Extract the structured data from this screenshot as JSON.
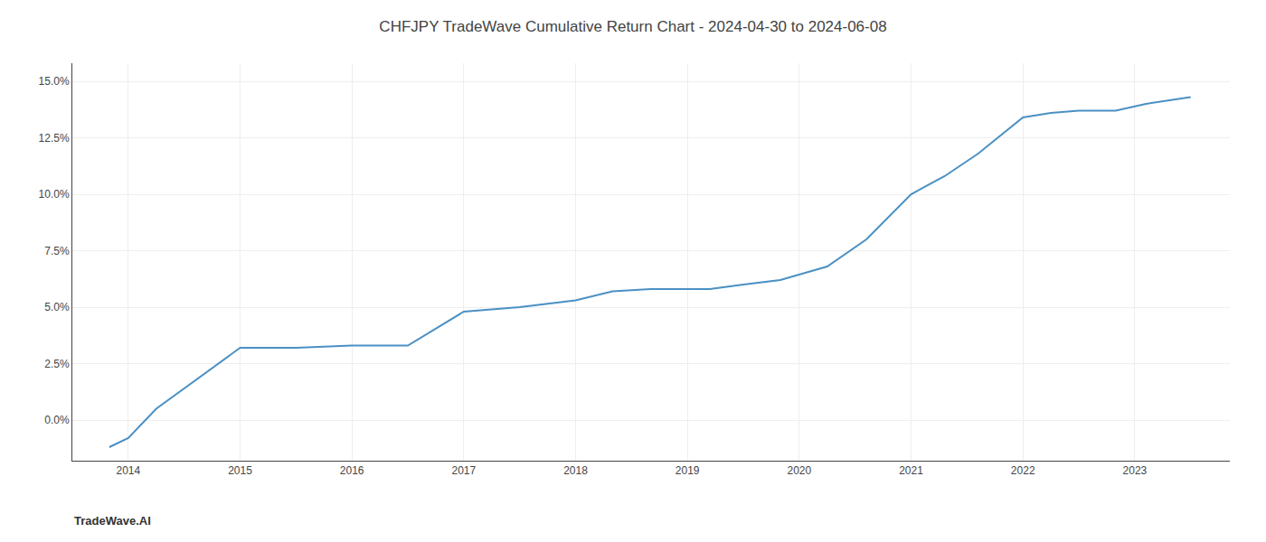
{
  "chart_data": {
    "type": "line",
    "title": "CHFJPY TradeWave Cumulative Return Chart - 2024-04-30 to 2024-06-08",
    "annotations": [
      {
        "text": "TradeWave.AI"
      }
    ],
    "x": [
      2013.83,
      2014.0,
      2014.25,
      2015.0,
      2015.5,
      2016.0,
      2016.5,
      2017.0,
      2017.5,
      2018.0,
      2018.33,
      2018.67,
      2019.0,
      2019.2,
      2019.5,
      2019.83,
      2020.25,
      2020.6,
      2021.0,
      2021.3,
      2021.6,
      2022.0,
      2022.25,
      2022.5,
      2022.83,
      2023.1,
      2023.5
    ],
    "values": [
      -0.012,
      -0.008,
      0.005,
      0.032,
      0.032,
      0.033,
      0.033,
      0.048,
      0.05,
      0.053,
      0.057,
      0.058,
      0.058,
      0.058,
      0.06,
      0.062,
      0.068,
      0.08,
      0.1,
      0.108,
      0.118,
      0.134,
      0.136,
      0.137,
      0.137,
      0.14,
      0.143
    ],
    "color": "#4a90c4",
    "xlim": [
      2013.5,
      2023.85
    ],
    "ylim": [
      -0.018,
      0.158
    ],
    "xticks": [
      2014,
      2015,
      2016,
      2017,
      2018,
      2019,
      2020,
      2021,
      2022,
      2023
    ],
    "yticks": [
      {
        "value": 0.0,
        "label": "0.0%"
      },
      {
        "value": 0.025,
        "label": "2.5%"
      },
      {
        "value": 0.05,
        "label": "5.0%"
      },
      {
        "value": 0.075,
        "label": "7.5%"
      },
      {
        "value": 0.1,
        "label": "10.0%"
      },
      {
        "value": 0.125,
        "label": "12.5%"
      },
      {
        "value": 0.15,
        "label": "15.0%"
      }
    ],
    "grid": true
  }
}
